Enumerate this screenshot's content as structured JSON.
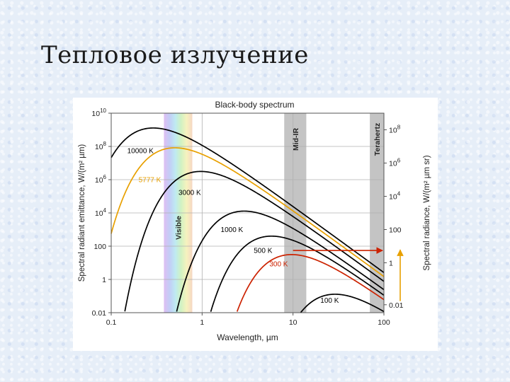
{
  "slide": {
    "title": "Тепловое излучение"
  },
  "chart_data": {
    "type": "line",
    "title": "Black-body spectrum",
    "xlabel": "Wavelength, µm",
    "ylabel_left": "Spectral radiant emittance, W/(m² µm)",
    "ylabel_right": "Spectral radiance, W/(m² µm sr)",
    "x_scale": "log",
    "y_scale": "log",
    "xlim": [
      0.1,
      100
    ],
    "ylim": [
      0.01,
      10000000000
    ],
    "x_ticks": [
      0.1,
      1,
      10,
      100
    ],
    "x_tick_labels": [
      "0.1",
      "1",
      "10",
      "100"
    ],
    "y_ticks_left": [
      {
        "value": 10000000000,
        "base": "10",
        "exp": "10"
      },
      {
        "value": 100000000,
        "base": "10",
        "exp": "8"
      },
      {
        "value": 1000000,
        "base": "10",
        "exp": "6"
      },
      {
        "value": 10000,
        "base": "10",
        "exp": "4"
      },
      {
        "value": 100,
        "base": "100",
        "exp": ""
      },
      {
        "value": 1,
        "base": "1",
        "exp": ""
      },
      {
        "value": 0.01,
        "base": "0.01",
        "exp": ""
      }
    ],
    "y_ticks_right": [
      {
        "left_value": 1000000000,
        "base": "10",
        "exp": "8"
      },
      {
        "left_value": 10000000,
        "base": "10",
        "exp": "6"
      },
      {
        "left_value": 100000,
        "base": "10",
        "exp": "4"
      },
      {
        "left_value": 1000,
        "base": "100",
        "exp": ""
      },
      {
        "left_value": 10,
        "base": "1",
        "exp": ""
      },
      {
        "left_value": 0.03,
        "base": "0.01",
        "exp": ""
      }
    ],
    "bands": [
      {
        "label": "Visible",
        "x_range": [
          0.38,
          0.78
        ],
        "style": "rainbow"
      },
      {
        "label": "Mid-IR",
        "x_range": [
          8,
          14
        ],
        "style": "gray"
      },
      {
        "label": "Terahertz",
        "x_range": [
          70,
          100
        ],
        "style": "gray"
      }
    ],
    "series": [
      {
        "name": "10000 K",
        "temperature": 10000,
        "color": "#000000",
        "label_at": [
          0.15,
          40000000.0
        ]
      },
      {
        "name": "5777 K",
        "temperature": 5777,
        "color": "#e8a000",
        "label_at": [
          0.2,
          700000.0
        ]
      },
      {
        "name": "3000 K",
        "temperature": 3000,
        "color": "#000000",
        "label_at": [
          0.55,
          120000.0
        ]
      },
      {
        "name": "1000 K",
        "temperature": 1000,
        "color": "#000000",
        "label_at": [
          1.6,
          700
        ]
      },
      {
        "name": "500 K",
        "temperature": 500,
        "color": "#000000",
        "label_at": [
          3.7,
          40
        ]
      },
      {
        "name": "300 K",
        "temperature": 300,
        "color": "#cc2200",
        "label_at": [
          5.5,
          6
        ]
      },
      {
        "name": "100 K",
        "temperature": 100,
        "color": "#000000",
        "label_at": [
          20,
          0.04
        ]
      }
    ],
    "annotations": [
      {
        "type": "arrow",
        "color": "#cc2200",
        "from": [
          10,
          55
        ],
        "to": [
          100,
          55
        ]
      },
      {
        "type": "vertical-arrow",
        "color": "#e8a000",
        "x": 100,
        "y_range": [
          0.05,
          60
        ]
      }
    ],
    "grid": true
  }
}
